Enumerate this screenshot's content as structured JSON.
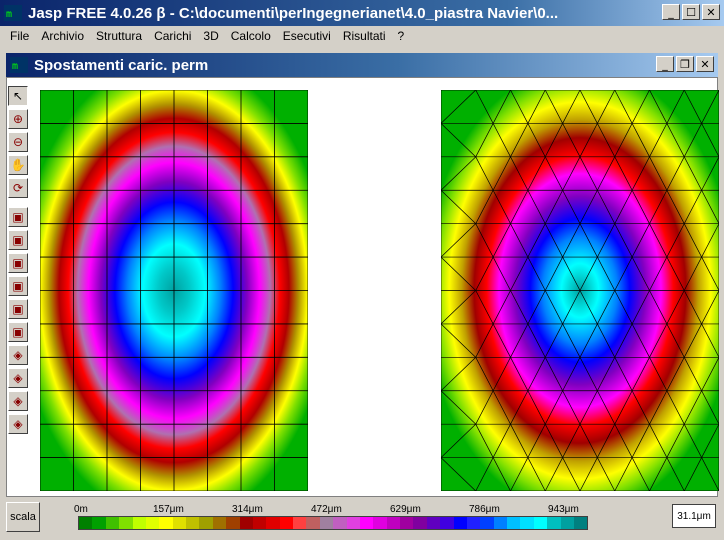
{
  "app": {
    "title": "Jasp FREE 4.0.26 β - C:\\documenti\\perIngegnerianet\\4.0_piastra Navier\\0...",
    "minimize": "_",
    "maximize": "☐",
    "close": "✕"
  },
  "menu": [
    "File",
    "Archivio",
    "Struttura",
    "Carichi",
    "3D",
    "Calcolo",
    "Esecutivi",
    "Risultati",
    "?"
  ],
  "child": {
    "title": "Spostamenti caric. perm",
    "minimize": "_",
    "restore": "❐",
    "close": "✕"
  },
  "toolbar": {
    "tools": [
      {
        "name": "pointer-tool",
        "glyph": "↖",
        "selected": true
      },
      {
        "name": "zoom-in-tool",
        "glyph": "⊕"
      },
      {
        "name": "zoom-out-tool",
        "glyph": "⊖"
      },
      {
        "name": "pan-tool",
        "glyph": "✋"
      },
      {
        "name": "rotate-tool",
        "glyph": "⟳"
      },
      {
        "name": "view-front-tool",
        "glyph": "▣"
      },
      {
        "name": "view-back-tool",
        "glyph": "▣"
      },
      {
        "name": "view-left-tool",
        "glyph": "▣"
      },
      {
        "name": "view-right-tool",
        "glyph": "▣"
      },
      {
        "name": "view-top-tool",
        "glyph": "▣"
      },
      {
        "name": "view-bottom-tool",
        "glyph": "▣"
      },
      {
        "name": "view-iso1-tool",
        "glyph": "◈"
      },
      {
        "name": "view-iso2-tool",
        "glyph": "◈"
      },
      {
        "name": "view-iso3-tool",
        "glyph": "◈"
      },
      {
        "name": "view-iso4-tool",
        "glyph": "◈"
      }
    ]
  },
  "legend": {
    "scala_label": "scala",
    "ticks": [
      "0m",
      "157μm",
      "314μm",
      "472μm",
      "629μm",
      "786μm",
      "943μm"
    ],
    "max_value": "31.1μm",
    "colors": [
      "#008000",
      "#00a000",
      "#40c000",
      "#80e000",
      "#c0ff00",
      "#e0ff00",
      "#ffff00",
      "#e0e000",
      "#c0c000",
      "#a0a000",
      "#a07000",
      "#a04000",
      "#a00000",
      "#c00000",
      "#e00000",
      "#ff0000",
      "#ff4040",
      "#c06060",
      "#a080a0",
      "#c060c0",
      "#e040e0",
      "#ff00ff",
      "#e000e0",
      "#c000c0",
      "#a000a0",
      "#8000a0",
      "#6000c0",
      "#4000e0",
      "#0000ff",
      "#2020ff",
      "#0040ff",
      "#0080ff",
      "#00c0ff",
      "#00e0ff",
      "#00ffff",
      "#00c0c0",
      "#00a0a0",
      "#008080"
    ]
  }
}
